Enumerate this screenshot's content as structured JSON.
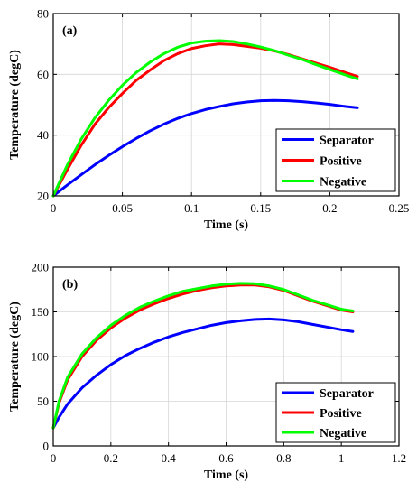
{
  "colors": {
    "separator": "#0000ff",
    "positive": "#ff0000",
    "negative": "#00ff00",
    "grid": "#d6d6d6"
  },
  "chart_data": [
    {
      "type": "line",
      "panel_label": "(a)",
      "xlabel": "Time (s)",
      "ylabel": "Temperature (degC)",
      "xlim": [
        0,
        0.25
      ],
      "ylim": [
        20,
        80
      ],
      "xticks": [
        "0",
        "0.05",
        "0.1",
        "0.15",
        "0.2",
        "0.25"
      ],
      "yticks": [
        "20",
        "40",
        "60",
        "80"
      ],
      "grid": true,
      "legend_position": "bottom-right",
      "x": [
        0,
        0.01,
        0.02,
        0.03,
        0.04,
        0.05,
        0.06,
        0.07,
        0.08,
        0.09,
        0.1,
        0.11,
        0.12,
        0.13,
        0.14,
        0.15,
        0.16,
        0.17,
        0.18,
        0.19,
        0.2,
        0.21,
        0.22
      ],
      "series": [
        {
          "name": "Separator",
          "color": "#0000ff",
          "values": [
            20,
            23.5,
            26.9,
            30.2,
            33.3,
            36.2,
            38.9,
            41.4,
            43.6,
            45.5,
            47.1,
            48.4,
            49.4,
            50.3,
            50.9,
            51.3,
            51.4,
            51.3,
            51.0,
            50.6,
            50.1,
            49.5,
            49.0
          ]
        },
        {
          "name": "Positive",
          "color": "#ff0000",
          "values": [
            20,
            28.5,
            36.5,
            43.5,
            49.0,
            53.7,
            58.0,
            61.4,
            64.5,
            66.8,
            68.5,
            69.4,
            70.0,
            69.8,
            69.2,
            68.6,
            67.7,
            66.5,
            65.1,
            63.7,
            62.3,
            60.8,
            59.3
          ]
        },
        {
          "name": "Negative",
          "color": "#00ff00",
          "values": [
            20,
            30.0,
            38.5,
            45.6,
            51.4,
            56.4,
            60.6,
            64.0,
            66.8,
            68.9,
            70.3,
            70.9,
            71.1,
            70.8,
            70.0,
            69.0,
            67.8,
            66.3,
            64.9,
            63.2,
            61.6,
            60.0,
            58.5
          ]
        }
      ]
    },
    {
      "type": "line",
      "panel_label": "(b)",
      "xlabel": "Time (s)",
      "ylabel": "Temperature (degC)",
      "xlim": [
        0,
        1.2
      ],
      "ylim": [
        0,
        200
      ],
      "xticks": [
        "0",
        "0.2",
        "0.4",
        "0.6",
        "0.8",
        "1",
        "1.2"
      ],
      "yticks": [
        "0",
        "50",
        "100",
        "150",
        "200"
      ],
      "grid": true,
      "legend_position": "bottom-right",
      "x": [
        0,
        0.02,
        0.05,
        0.1,
        0.15,
        0.2,
        0.25,
        0.3,
        0.35,
        0.4,
        0.45,
        0.5,
        0.55,
        0.6,
        0.65,
        0.7,
        0.75,
        0.8,
        0.85,
        0.9,
        0.95,
        1.0,
        1.04
      ],
      "series": [
        {
          "name": "Separator",
          "color": "#0000ff",
          "values": [
            20,
            32,
            47,
            65,
            79,
            91,
            101,
            109,
            116,
            122,
            127,
            131,
            135,
            138,
            140,
            141.5,
            142,
            141,
            139,
            136,
            133,
            130,
            128
          ]
        },
        {
          "name": "Positive",
          "color": "#ff0000",
          "values": [
            20,
            48,
            74,
            100,
            118,
            132,
            143,
            152,
            159,
            165,
            170,
            174,
            177,
            179,
            180,
            180,
            178,
            174,
            168,
            162,
            157,
            152,
            150
          ]
        },
        {
          "name": "Negative",
          "color": "#00ff00",
          "values": [
            20,
            50,
            77,
            103,
            121,
            135,
            146,
            155,
            162,
            168,
            173,
            176,
            179,
            181,
            182,
            181.5,
            179,
            175,
            169,
            163,
            158,
            153,
            151
          ]
        }
      ]
    }
  ]
}
